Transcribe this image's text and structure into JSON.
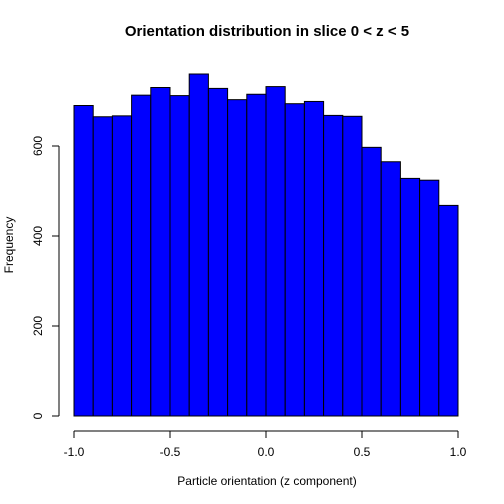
{
  "chart_data": {
    "type": "bar",
    "title": "Orientation distribution in slice 0 < z < 5",
    "xlabel": "Particle orientation (z component)",
    "ylabel": "Frequency",
    "bin_edges": [
      -1.0,
      -0.9,
      -0.8,
      -0.7,
      -0.6,
      -0.5,
      -0.4,
      -0.3,
      -0.2,
      -0.1,
      0.0,
      0.1,
      0.2,
      0.3,
      0.4,
      0.5,
      0.6,
      0.7,
      0.8,
      0.9,
      1.0
    ],
    "values": [
      690,
      665,
      667,
      713,
      730,
      712,
      760,
      728,
      703,
      715,
      732,
      694,
      699,
      668,
      666,
      597,
      565,
      528,
      524,
      468
    ],
    "xlim": [
      -1.0,
      1.0
    ],
    "ylim": [
      0,
      760
    ],
    "x_ticks": [
      {
        "value": -1.0,
        "label": "-1.0"
      },
      {
        "value": -0.5,
        "label": "-0.5"
      },
      {
        "value": 0.0,
        "label": "0.0"
      },
      {
        "value": 0.5,
        "label": "0.5"
      },
      {
        "value": 1.0,
        "label": "1.0"
      }
    ],
    "y_ticks": [
      {
        "value": 0,
        "label": "0"
      },
      {
        "value": 200,
        "label": "200"
      },
      {
        "value": 400,
        "label": "400"
      },
      {
        "value": 600,
        "label": "600"
      }
    ],
    "grid": false,
    "legend": "none",
    "colors": {
      "bar_fill": "#0000ff",
      "bar_stroke": "#000000"
    }
  }
}
